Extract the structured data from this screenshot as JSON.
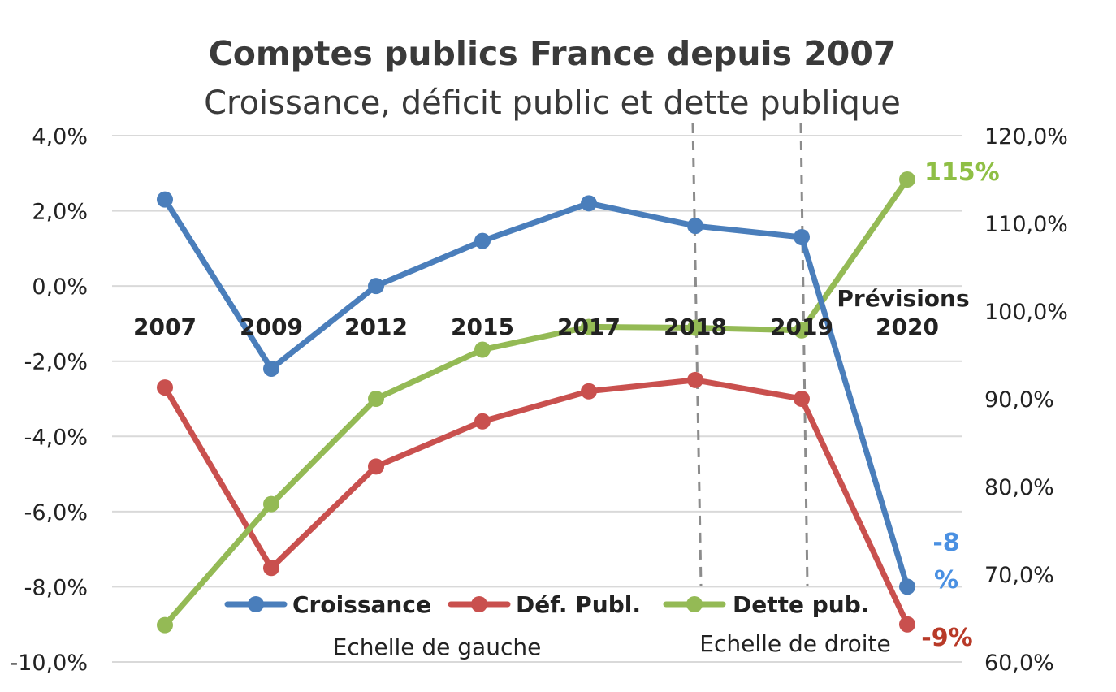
{
  "chart_data": {
    "type": "line",
    "title": "Comptes publics France depuis 2007",
    "subtitle": "Croissance, déficit public et dette publique",
    "categories": [
      "2007",
      "2009",
      "2012",
      "2015",
      "2017",
      "2018",
      "2019",
      "2020"
    ],
    "y_left": {
      "ylim": [
        -10,
        4
      ],
      "ticks": [
        4,
        2,
        0,
        -2,
        -4,
        -6,
        -8,
        -10
      ],
      "tick_labels": [
        "4,0%",
        "2,0%",
        "0,0%",
        "-2,0%",
        "-4,0%",
        "-6,0%",
        "-8,0%",
        "-10,0%"
      ]
    },
    "y_right": {
      "ylim": [
        60,
        120
      ],
      "ticks": [
        120,
        110,
        100,
        90,
        80,
        70,
        60
      ],
      "tick_labels": [
        "120,0%",
        "110,0%",
        "100,0%",
        "90,0%",
        "80,0%",
        "70,0%",
        "60,0%"
      ]
    },
    "series": [
      {
        "name": "Croissance",
        "axis": "left",
        "color": "#4a7ebb",
        "values": [
          2.3,
          -2.2,
          0.0,
          1.2,
          2.2,
          1.6,
          1.3,
          -8.0
        ]
      },
      {
        "name": "Déf. Publ.",
        "axis": "left",
        "color": "#c9504e",
        "values": [
          -2.7,
          -7.5,
          -4.8,
          -3.6,
          -2.8,
          -2.5,
          -3.0,
          -9.0
        ]
      },
      {
        "name": "Dette pub.",
        "axis": "right",
        "color": "#94ba55",
        "values": [
          64.2,
          78.0,
          90.0,
          95.6,
          98.2,
          98.1,
          97.8,
          115.0
        ]
      }
    ],
    "grid": true,
    "legend_position": "bottom",
    "annotations": {
      "forecast": "Prévisions",
      "left_scale": "Echelle de gauche",
      "right_scale": "Echelle de droite",
      "croissance_end_line1": "-8",
      "croissance_end_line2": "%",
      "deficit_end": "-9%",
      "dette_end": "115%"
    }
  }
}
